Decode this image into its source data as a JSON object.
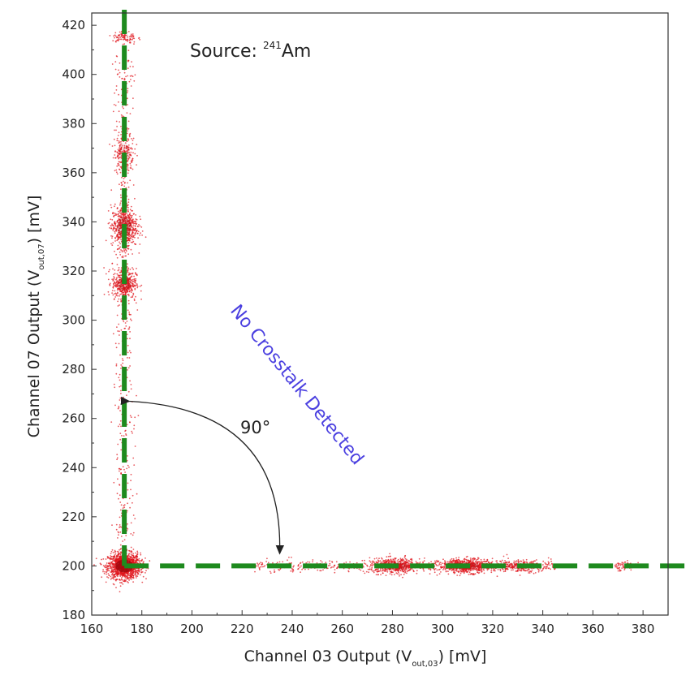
{
  "chart_data": {
    "type": "scatter",
    "title": "",
    "xlabel": {
      "main": "Channel 03 Output (V",
      "sub": "out,03",
      "tail": ") [mV]"
    },
    "ylabel": {
      "main": "Channel 07 Output (V",
      "sub": "out,07",
      "tail": ") [mV]"
    },
    "xlim": [
      160,
      390
    ],
    "ylim": [
      180,
      425
    ],
    "xticks": [
      160,
      180,
      200,
      220,
      240,
      260,
      280,
      300,
      320,
      340,
      360,
      380
    ],
    "yticks": [
      180,
      200,
      220,
      240,
      260,
      280,
      300,
      320,
      340,
      360,
      380,
      400,
      420
    ],
    "grid": false,
    "annotations": {
      "source_prefix": "Source: ",
      "source_isotope_mass": "241",
      "source_element": "Am",
      "angle_label": "90°",
      "rotated_note": "No Crosstalk Detected"
    },
    "colors": {
      "points": "#e0141b",
      "guide_lines": "#1e8a1e",
      "note_text": "#4a3fe0",
      "axes": "#333333"
    },
    "series": [
      {
        "clusters": [
          {
            "x": 173,
            "y": 200,
            "n": 1400,
            "sx": 3.2,
            "sy": 2.6
          },
          {
            "x": 173,
            "y": 315,
            "n": 420,
            "sx": 2.4,
            "sy": 3.0
          },
          {
            "x": 173,
            "y": 338,
            "n": 560,
            "sx": 2.6,
            "sy": 4.2
          },
          {
            "x": 173,
            "y": 368,
            "n": 200,
            "sx": 2.0,
            "sy": 4.0
          },
          {
            "x": 173,
            "y": 415,
            "n": 90,
            "sx": 2.4,
            "sy": 1.4
          },
          {
            "x": 281,
            "y": 200,
            "n": 520,
            "sx": 5.0,
            "sy": 1.5
          },
          {
            "x": 309,
            "y": 200,
            "n": 620,
            "sx": 5.0,
            "sy": 1.4
          },
          {
            "x": 330,
            "y": 200,
            "n": 220,
            "sx": 4.5,
            "sy": 1.3
          },
          {
            "x": 372,
            "y": 200,
            "n": 60,
            "sx": 2.5,
            "sy": 1.0
          }
        ],
        "bands": [
          {
            "x": 173,
            "sx": 2.0,
            "y_from": 210,
            "y_to": 412,
            "n": 520
          },
          {
            "y": 200,
            "sy": 1.2,
            "x_from": 225,
            "x_to": 345,
            "n": 520
          }
        ]
      }
    ],
    "guide_lines": {
      "vertical_x": 173,
      "horizontal_y": 200
    },
    "angle_arrow": {
      "from": [
        175,
        267
      ],
      "to": [
        235,
        205
      ]
    }
  }
}
